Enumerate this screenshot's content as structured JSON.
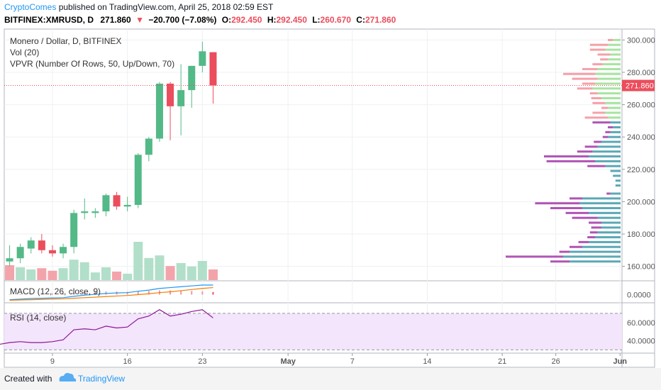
{
  "header": {
    "author": "CryptoComes",
    "published_text": " published on TradingView.com, April 25, 2018 02:59 EST",
    "symbol_line": "BITFINEX:XMRUSD, D",
    "price": "271.860",
    "change": "−20.700 (−7.08%)",
    "ohlc": {
      "o_label": "O:",
      "o": "292.450",
      "h_label": "H:",
      "h": "292.450",
      "l_label": "L:",
      "l": "260.670",
      "c_label": "C:",
      "c": "271.860"
    }
  },
  "legend": {
    "pane_title": "Monero / Dollar, D, BITFINEX",
    "vol": "Vol (20)",
    "vpvr": "VPVR (Number Of Rows, 50, Up/Down, 70)"
  },
  "macd_label": "MACD (12, 26, close, 9)",
  "rsi_label": "RSI (14, close)",
  "footer": {
    "created_with": "Created with",
    "brand": "TradingView"
  },
  "colors": {
    "up": "#53b987",
    "down": "#eb4d5c",
    "vol_up": "#aadbc3",
    "vol_down": "#f29aa2",
    "vpvr_up": "#5ba8b5",
    "vpvr_down": "#b054b5",
    "vpvr_up_light": "#a6e4a0",
    "vpvr_down_light": "#f5a0a8",
    "macd": "#2196f3",
    "signal": "#f57c00",
    "rsi": "#8e1599",
    "rsi_band": "#f3e5fb",
    "price_line": "#eb4d5c",
    "brand": "#2196f3"
  },
  "chart_data": {
    "type": "candlestick",
    "symbol": "BITFINEX:XMRUSD",
    "interval": "D",
    "y_range": [
      155,
      305
    ],
    "y_ticks": [
      "300.000",
      "280.000",
      "260.000",
      "240.000",
      "220.000",
      "200.000",
      "180.000",
      "160.000"
    ],
    "y_tick_values": [
      300,
      280,
      260,
      240,
      220,
      200,
      180,
      160
    ],
    "last_price_label": "271.860",
    "last_price": 271.86,
    "x_ticks": [
      {
        "label": "9",
        "day": 9
      },
      {
        "label": "16",
        "day": 16
      },
      {
        "label": "23",
        "day": 23
      },
      {
        "label": "May",
        "day": 31
      },
      {
        "label": "7",
        "day": 37
      },
      {
        "label": "14",
        "day": 44
      },
      {
        "label": "21",
        "day": 51
      },
      {
        "label": "26",
        "day": 56
      },
      {
        "label": "Jun",
        "day": 62
      }
    ],
    "candles": [
      {
        "day": 5,
        "o": 163,
        "h": 173,
        "l": 160,
        "c": 165
      },
      {
        "day": 6,
        "o": 165,
        "h": 174,
        "l": 162,
        "c": 172
      },
      {
        "day": 7,
        "o": 171,
        "h": 178,
        "l": 168,
        "c": 176
      },
      {
        "day": 8,
        "o": 176,
        "h": 180,
        "l": 168,
        "c": 170
      },
      {
        "day": 9,
        "o": 170,
        "h": 173,
        "l": 166,
        "c": 168
      },
      {
        "day": 10,
        "o": 168,
        "h": 174,
        "l": 165,
        "c": 172
      },
      {
        "day": 11,
        "o": 172,
        "h": 195,
        "l": 168,
        "c": 193
      },
      {
        "day": 12,
        "o": 193,
        "h": 202,
        "l": 189,
        "c": 194
      },
      {
        "day": 13,
        "o": 193,
        "h": 196,
        "l": 190,
        "c": 194
      },
      {
        "day": 14,
        "o": 194,
        "h": 205,
        "l": 191,
        "c": 204
      },
      {
        "day": 15,
        "o": 204,
        "h": 206,
        "l": 195,
        "c": 197
      },
      {
        "day": 16,
        "o": 197,
        "h": 203,
        "l": 194,
        "c": 198
      },
      {
        "day": 17,
        "o": 198,
        "h": 230,
        "l": 196,
        "c": 229
      },
      {
        "day": 18,
        "o": 229,
        "h": 240,
        "l": 225,
        "c": 239
      },
      {
        "day": 19,
        "o": 239,
        "h": 274,
        "l": 237,
        "c": 273
      },
      {
        "day": 20,
        "o": 273,
        "h": 274,
        "l": 238,
        "c": 259
      },
      {
        "day": 21,
        "o": 259,
        "h": 285,
        "l": 241,
        "c": 269
      },
      {
        "day": 22,
        "o": 269,
        "h": 284,
        "l": 258,
        "c": 284
      },
      {
        "day": 23,
        "o": 284,
        "h": 299,
        "l": 280,
        "c": 293
      },
      {
        "day": 24,
        "o": 292.45,
        "h": 292.45,
        "l": 260.67,
        "c": 271.86
      }
    ],
    "volume": [
      {
        "day": 5,
        "v": 35,
        "up": false
      },
      {
        "day": 6,
        "v": 30,
        "up": true
      },
      {
        "day": 7,
        "v": 25,
        "up": true
      },
      {
        "day": 8,
        "v": 28,
        "up": false
      },
      {
        "day": 9,
        "v": 22,
        "up": false
      },
      {
        "day": 10,
        "v": 28,
        "up": true
      },
      {
        "day": 11,
        "v": 48,
        "up": true
      },
      {
        "day": 12,
        "v": 42,
        "up": true
      },
      {
        "day": 13,
        "v": 18,
        "up": true
      },
      {
        "day": 14,
        "v": 30,
        "up": true
      },
      {
        "day": 15,
        "v": 20,
        "up": false
      },
      {
        "day": 16,
        "v": 15,
        "up": true
      },
      {
        "day": 17,
        "v": 90,
        "up": true
      },
      {
        "day": 18,
        "v": 52,
        "up": true
      },
      {
        "day": 19,
        "v": 58,
        "up": true
      },
      {
        "day": 20,
        "v": 33,
        "up": false
      },
      {
        "day": 21,
        "v": 40,
        "up": true
      },
      {
        "day": 22,
        "v": 32,
        "up": true
      },
      {
        "day": 23,
        "v": 45,
        "up": true
      },
      {
        "day": 24,
        "v": 25,
        "up": false
      }
    ],
    "volume_max": 100,
    "vpvr_rows": [
      {
        "price": 163,
        "up": 40,
        "down": 15
      },
      {
        "price": 166,
        "up": 45,
        "down": 45
      },
      {
        "price": 169,
        "up": 40,
        "down": 8
      },
      {
        "price": 172,
        "up": 30,
        "down": 10
      },
      {
        "price": 175,
        "up": 25,
        "down": 8
      },
      {
        "price": 178,
        "up": 20,
        "down": 6
      },
      {
        "price": 181,
        "up": 18,
        "down": 6
      },
      {
        "price": 184,
        "up": 15,
        "down": 8
      },
      {
        "price": 187,
        "up": 15,
        "down": 10
      },
      {
        "price": 190,
        "up": 18,
        "down": 20
      },
      {
        "price": 193,
        "up": 25,
        "down": 18
      },
      {
        "price": 196,
        "up": 30,
        "down": 25
      },
      {
        "price": 199,
        "up": 32,
        "down": 35
      },
      {
        "price": 202,
        "up": 30,
        "down": 10
      },
      {
        "price": 205,
        "up": 8,
        "down": 3
      },
      {
        "price": 210,
        "up": 4,
        "down": 0
      },
      {
        "price": 213,
        "up": 4,
        "down": 0
      },
      {
        "price": 216,
        "up": 6,
        "down": 0
      },
      {
        "price": 219,
        "up": 8,
        "down": 0
      },
      {
        "price": 222,
        "up": 12,
        "down": 14
      },
      {
        "price": 225,
        "up": 20,
        "down": 38
      },
      {
        "price": 228,
        "up": 25,
        "down": 35
      },
      {
        "price": 231,
        "up": 22,
        "down": 12
      },
      {
        "price": 234,
        "up": 18,
        "down": 10
      },
      {
        "price": 237,
        "up": 15,
        "down": 6
      },
      {
        "price": 240,
        "up": 10,
        "down": 4
      },
      {
        "price": 243,
        "up": 8,
        "down": 4
      },
      {
        "price": 246,
        "up": 6,
        "down": 4
      },
      {
        "price": 249,
        "up": 8,
        "down": 14
      },
      {
        "price": 252,
        "up": 10,
        "down": 18
      },
      {
        "price": 255,
        "up": 12,
        "down": 10
      },
      {
        "price": 258,
        "up": 10,
        "down": 5
      },
      {
        "price": 261,
        "up": 12,
        "down": 10
      },
      {
        "price": 264,
        "up": 15,
        "down": 8
      },
      {
        "price": 267,
        "up": 18,
        "down": 6
      },
      {
        "price": 270,
        "up": 22,
        "down": 12
      },
      {
        "price": 273,
        "up": 20,
        "down": 10
      },
      {
        "price": 276,
        "up": 18,
        "down": 20
      },
      {
        "price": 279,
        "up": 20,
        "down": 25
      },
      {
        "price": 282,
        "up": 18,
        "down": 12
      },
      {
        "price": 285,
        "up": 14,
        "down": 8
      },
      {
        "price": 288,
        "up": 10,
        "down": 6
      },
      {
        "price": 291,
        "up": 8,
        "down": 10
      },
      {
        "price": 294,
        "up": 12,
        "down": 12
      },
      {
        "price": 297,
        "up": 10,
        "down": 14
      },
      {
        "price": 300,
        "up": 6,
        "down": 4
      }
    ],
    "macd": {
      "y_ticks": [
        "0.0000"
      ],
      "y_tick_values": [
        0
      ],
      "y_range": [
        -12,
        22
      ],
      "days": [
        5,
        6,
        7,
        8,
        9,
        10,
        11,
        12,
        13,
        14,
        15,
        16,
        17,
        18,
        19,
        20,
        21,
        22,
        23,
        24
      ],
      "macd": [
        -9,
        -8,
        -7,
        -6.5,
        -6,
        -5.5,
        -3,
        -1,
        0.5,
        2,
        3,
        3.5,
        6,
        8,
        11,
        12.5,
        14,
        15.5,
        17,
        17
      ],
      "signal": [
        -10,
        -9.5,
        -9,
        -8.5,
        -8,
        -7.5,
        -6.5,
        -5.5,
        -4.5,
        -3.5,
        -2.5,
        -1.5,
        0,
        1.5,
        3.5,
        5,
        7,
        9,
        11,
        12.5
      ],
      "hist": [
        1,
        1.5,
        2,
        2,
        2,
        2,
        3.5,
        4.5,
        5,
        5.5,
        5.5,
        5,
        6,
        6.5,
        7.5,
        7.5,
        7,
        6.5,
        6,
        4.5
      ]
    },
    "rsi": {
      "y_ticks": [
        "60.0000",
        "40.0000"
      ],
      "y_tick_values": [
        60,
        40
      ],
      "y_range": [
        28,
        80
      ],
      "band": [
        30,
        70
      ],
      "days": [
        3,
        4,
        5,
        6,
        7,
        8,
        9,
        10,
        11,
        12,
        13,
        14,
        15,
        16,
        17,
        18,
        19,
        20,
        21,
        22,
        23,
        24
      ],
      "values": [
        34,
        36,
        38,
        39,
        38,
        38,
        39,
        41,
        52,
        53,
        52,
        56,
        54,
        55,
        64,
        67,
        74,
        67,
        69,
        72,
        74,
        65
      ]
    }
  }
}
